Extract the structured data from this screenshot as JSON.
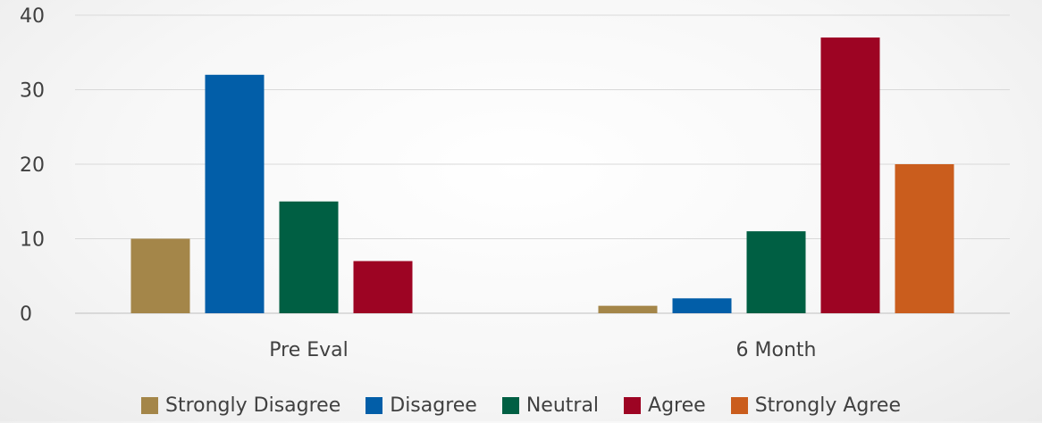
{
  "chart_data": {
    "type": "bar",
    "categories": [
      "Pre Eval",
      "6 Month"
    ],
    "series": [
      {
        "name": "Strongly Disagree",
        "values": [
          10,
          1
        ],
        "color": "#a48649"
      },
      {
        "name": "Disagree",
        "values": [
          32,
          2
        ],
        "color": "#025ea8"
      },
      {
        "name": "Neutral",
        "values": [
          15,
          11
        ],
        "color": "#005f43"
      },
      {
        "name": "Agree",
        "values": [
          7,
          37
        ],
        "color": "#9d0423"
      },
      {
        "name": "Strongly Agree",
        "values": [
          0,
          20
        ],
        "color": "#ca5d1d"
      }
    ],
    "yticks": [
      "0",
      "10",
      "20",
      "30",
      "40"
    ],
    "ylim": [
      0,
      40
    ],
    "grid": true,
    "legend_position": "bottom"
  }
}
